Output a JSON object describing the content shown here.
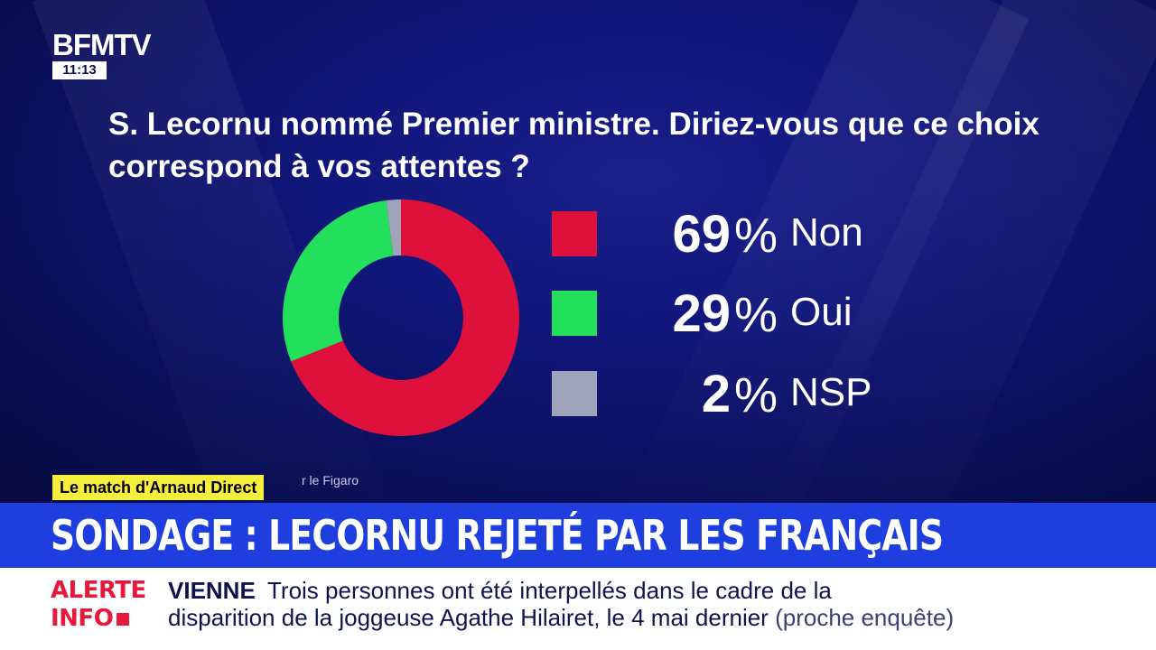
{
  "channel": {
    "logo": "BFMTV",
    "time": "11:13"
  },
  "program_tag": "Le match d'Arnaud Direct",
  "source_fragment": "r le Figaro",
  "question": "S. Lecornu nommé Premier ministre. Diriez-vous que ce choix correspond à vos attentes ?",
  "colors": {
    "non": "#e0103c",
    "oui": "#22e05c",
    "nsp": "#a0a4b8",
    "banner": "#1e3ee0",
    "alert": "#e8173c"
  },
  "chart_data": {
    "type": "pie",
    "title": "S. Lecornu nommé Premier ministre. Diriez-vous que ce choix correspond à vos attentes ?",
    "slices": [
      {
        "label": "Non",
        "value": 69,
        "display": "69",
        "color": "#e0103c"
      },
      {
        "label": "Oui",
        "value": 29,
        "display": "29",
        "color": "#22e05c"
      },
      {
        "label": "NSP",
        "value": 2,
        "display": "2",
        "color": "#a0a4b8"
      }
    ],
    "unit": "%",
    "donut": true
  },
  "banner": {
    "headline": "SONDAGE : LECORNU REJETÉ PAR LES FRANÇAIS"
  },
  "ticker": {
    "alert_line1": "ALERTE",
    "alert_line2": "INFO",
    "topic": "VIENNE",
    "line1": "Trois personnes ont été interpellés dans le cadre de la",
    "line2": "disparition de la joggeuse Agathe Hilairet, le 4 mai dernier",
    "line2_paren": "(proche enquête)"
  }
}
